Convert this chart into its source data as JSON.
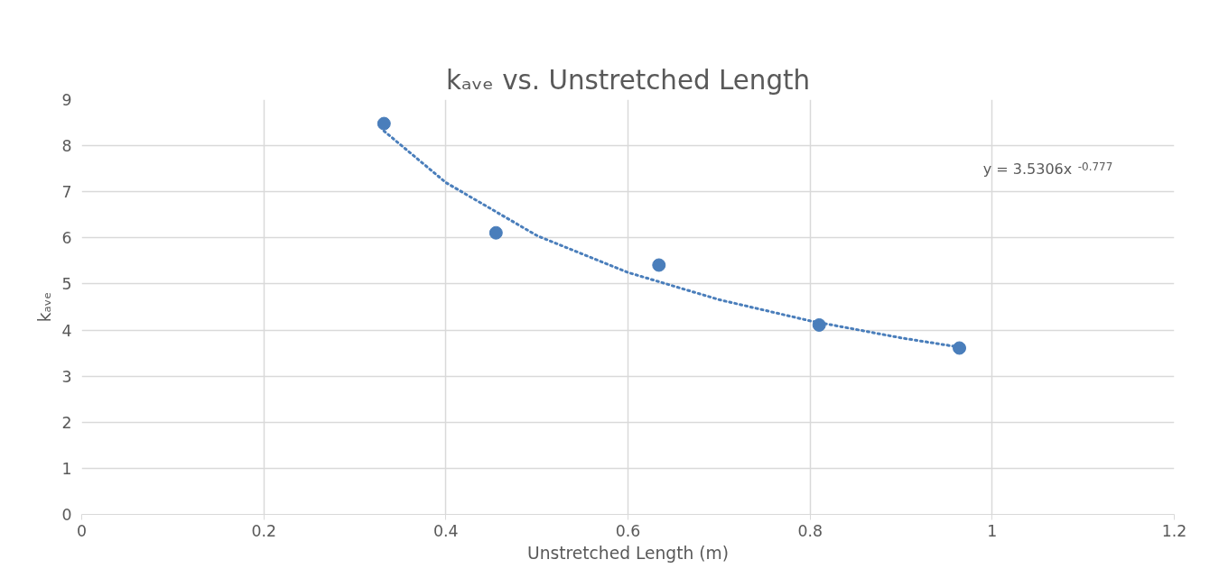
{
  "chart_data": {
    "type": "scatter",
    "title": "kₐᵥₑ vs. Unstretched Length",
    "xlabel": "Unstretched Length (m)",
    "ylabel": "kₐᵥₑ",
    "series": [
      {
        "color": "#4a7ebb",
        "x": [
          0.332,
          0.455,
          0.634,
          0.81,
          0.964
        ],
        "values": [
          8.48,
          6.11,
          5.41,
          4.11,
          3.61
        ],
        "marker": "circle"
      },
      {
        "type": "line",
        "color": "#4a7ebb",
        "line_style": "dotted",
        "x": [
          0.332,
          0.4,
          0.5,
          0.6,
          0.7,
          0.8,
          0.9,
          0.964
        ],
        "values": [
          8.32,
          7.2,
          6.05,
          5.25,
          4.66,
          4.2,
          3.83,
          3.63
        ]
      }
    ],
    "annotations": [
      "y = 3.5306x$^{-0.777}$"
    ],
    "xlim": [
      0,
      1.2
    ],
    "xticks": [
      0,
      0.2,
      0.4,
      0.6,
      0.8,
      1,
      1.2
    ],
    "ylim": [
      0,
      9
    ],
    "yticks": [
      0,
      1,
      2,
      3,
      4,
      5,
      6,
      7,
      8,
      9
    ],
    "grid": true
  }
}
